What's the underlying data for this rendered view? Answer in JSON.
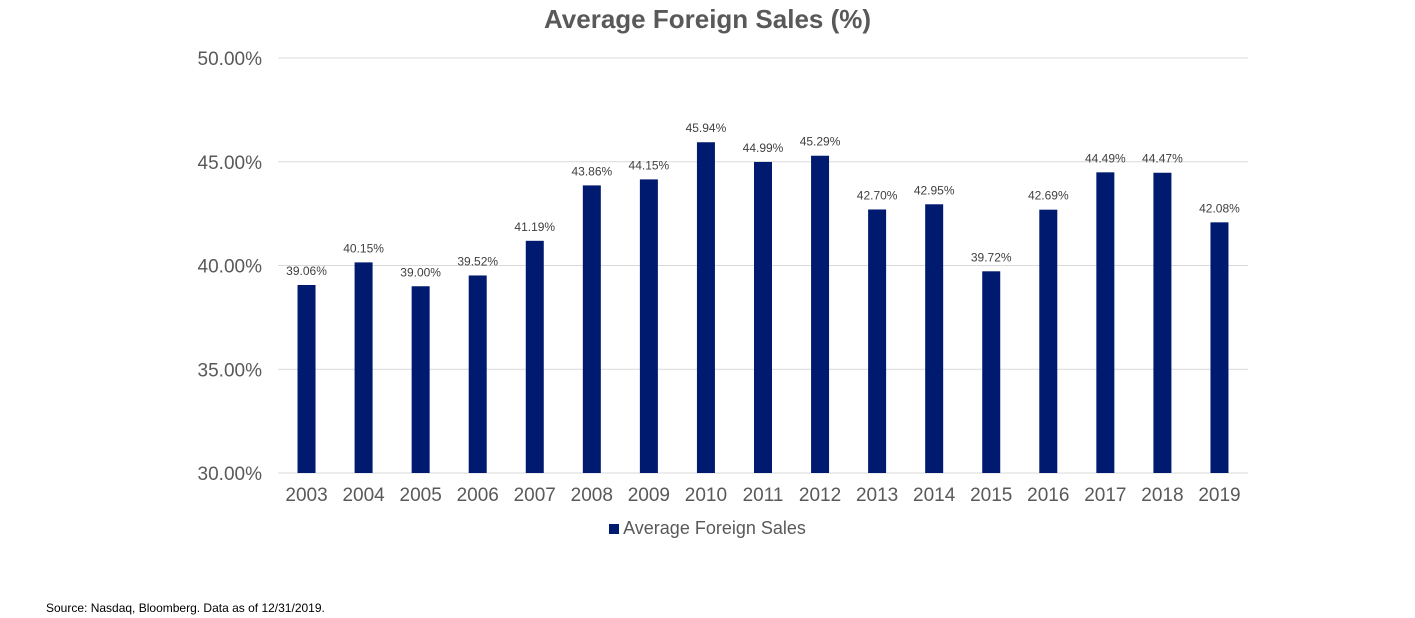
{
  "chart_data": {
    "type": "bar",
    "title": "Average Foreign Sales (%)",
    "xlabel": "",
    "ylabel": "",
    "categories": [
      "2003",
      "2004",
      "2005",
      "2006",
      "2007",
      "2008",
      "2009",
      "2010",
      "2011",
      "2012",
      "2013",
      "2014",
      "2015",
      "2016",
      "2017",
      "2018",
      "2019"
    ],
    "series": [
      {
        "name": "Average Foreign Sales",
        "values": [
          39.06,
          40.15,
          39.0,
          39.52,
          41.19,
          43.86,
          44.15,
          45.94,
          44.99,
          45.29,
          42.7,
          42.95,
          39.72,
          42.69,
          44.49,
          44.47,
          42.08
        ],
        "data_labels": [
          "39.06%",
          "40.15%",
          "39.00%",
          "39.52%",
          "41.19%",
          "43.86%",
          "44.15%",
          "45.94%",
          "44.99%",
          "45.29%",
          "42.70%",
          "42.95%",
          "39.72%",
          "42.69%",
          "44.49%",
          "44.47%",
          "42.08%"
        ],
        "color": "#001a70"
      }
    ],
    "ylim": [
      30,
      50
    ],
    "yticks": [
      30,
      35,
      40,
      45,
      50
    ],
    "ytick_labels": [
      "30.00%",
      "35.00%",
      "40.00%",
      "45.00%",
      "50.00%"
    ],
    "grid": true,
    "legend_position": "bottom",
    "colors": {
      "bar": "#001a70",
      "grid": "#d9d9d9",
      "axis_text": "#595959",
      "data_label": "#404040"
    }
  },
  "source_note": "Source: Nasdaq, Bloomberg.  Data as of 12/31/2019."
}
